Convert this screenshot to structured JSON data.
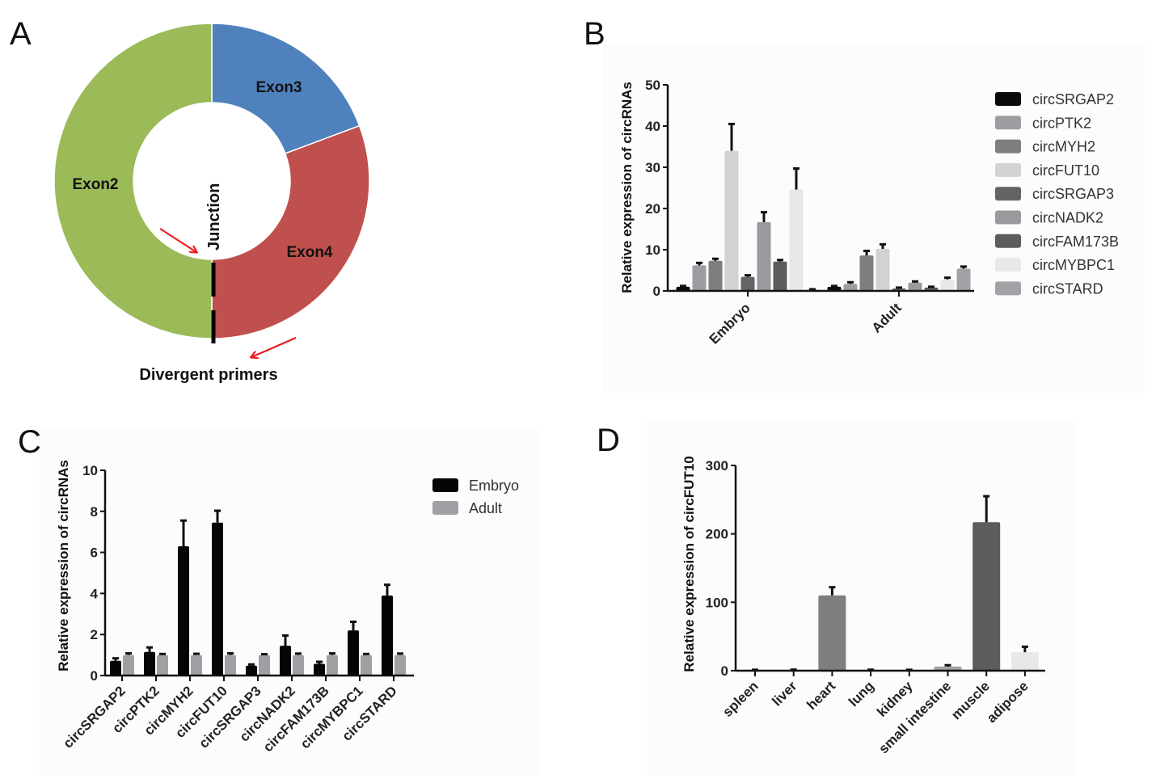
{
  "figure": {
    "panels": [
      "A",
      "B",
      "C",
      "D"
    ]
  },
  "chart_data": [
    {
      "id": "A",
      "type": "pie",
      "variant": "donut",
      "title": "",
      "slices": [
        {
          "label": "Exon3",
          "value": 19.3,
          "color": "#4f81bd"
        },
        {
          "label": "Exon4",
          "value": 30.7,
          "color": "#c0504d"
        },
        {
          "label": "Exon2",
          "value": 50.0,
          "color": "#9bbb59"
        }
      ],
      "annotations": {
        "junction": "Junction",
        "primers": "Divergent primers"
      }
    },
    {
      "id": "B",
      "type": "bar",
      "title": "",
      "xlabel": "",
      "ylabel": "Relative expression of circRNAs",
      "ylim": [
        0,
        50
      ],
      "yticks": [
        "0",
        "10",
        "20",
        "30",
        "40",
        "50"
      ],
      "categories": [
        "Embryo",
        "Adult"
      ],
      "legend_position": "right",
      "series": [
        {
          "name": "circSRGAP2",
          "color": "#0a0a0a",
          "values": [
            1.0,
            1.0
          ],
          "errors": [
            0.2,
            0.2
          ]
        },
        {
          "name": "circPTK2",
          "color": "#9d9da2",
          "values": [
            6.2,
            1.7
          ],
          "errors": [
            0.6,
            0.4
          ]
        },
        {
          "name": "circMYH2",
          "color": "#7e7e7e",
          "values": [
            7.3,
            8.6
          ],
          "errors": [
            0.5,
            1.1
          ]
        },
        {
          "name": "circFUT10",
          "color": "#d2d2d2",
          "values": [
            34.0,
            10.2
          ],
          "errors": [
            6.5,
            1.1
          ]
        },
        {
          "name": "circSRGAP3",
          "color": "#646464",
          "values": [
            3.4,
            0.6
          ],
          "errors": [
            0.4,
            0.2
          ]
        },
        {
          "name": "circNADK2",
          "color": "#9a9a9e",
          "values": [
            16.7,
            2.0
          ],
          "errors": [
            2.4,
            0.3
          ]
        },
        {
          "name": "circFAM173B",
          "color": "#5c5c5c",
          "values": [
            7.1,
            0.8
          ],
          "errors": [
            0.4,
            0.2
          ]
        },
        {
          "name": "circMYBPC1",
          "color": "#e8e8e8",
          "values": [
            24.6,
            2.8
          ],
          "errors": [
            5.1,
            0.4
          ]
        },
        {
          "name": "circSTARD",
          "color": "#a2a2a6",
          "values": [
            0.3,
            5.4
          ],
          "errors": [
            0.1,
            0.5
          ]
        }
      ]
    },
    {
      "id": "C",
      "type": "bar",
      "title": "",
      "xlabel": "",
      "ylabel": "Relative expression of circRNAs",
      "ylim": [
        0,
        10
      ],
      "yticks": [
        "0",
        "2",
        "4",
        "6",
        "8",
        "10"
      ],
      "categories": [
        "circSRGAP2",
        "circPTK2",
        "circMYH2",
        "circFUT10",
        "circSRGAP3",
        "circNADK2",
        "circFAM173B",
        "circMYBPC1",
        "circSTARD"
      ],
      "legend_position": "top-right",
      "series": [
        {
          "name": "Embryo",
          "color": "#050505",
          "values": [
            0.72,
            1.15,
            6.3,
            7.45,
            0.48,
            1.45,
            0.57,
            2.2,
            3.9
          ],
          "errors": [
            0.12,
            0.22,
            1.25,
            0.58,
            0.06,
            0.5,
            0.1,
            0.42,
            0.52
          ]
        },
        {
          "name": "Adult",
          "color": "#a0a0a4",
          "values": [
            1.0,
            1.0,
            1.0,
            1.0,
            1.0,
            1.0,
            1.0,
            1.0,
            1.0
          ],
          "errors": [
            0.08,
            0.05,
            0.06,
            0.08,
            0.04,
            0.07,
            0.08,
            0.05,
            0.07
          ]
        }
      ]
    },
    {
      "id": "D",
      "type": "bar",
      "title": "",
      "xlabel": "",
      "ylabel": "Relative expression of circFUT10",
      "ylim": [
        0,
        300
      ],
      "yticks": [
        "0",
        "100",
        "200",
        "300"
      ],
      "categories": [
        "spleen",
        "liver",
        "heart",
        "lung",
        "kidney",
        "small intestine",
        "muscle",
        "adipose"
      ],
      "colors": [
        "#0a0a0a",
        "#9d9da2",
        "#7e7e7e",
        "#d2d2d2",
        "#646464",
        "#a2a2a6",
        "#5c5c5c",
        "#e8e8e8"
      ],
      "values": [
        1.0,
        1.0,
        110,
        1.0,
        1.0,
        6.0,
        217,
        27
      ],
      "errors": [
        0.3,
        0.5,
        12,
        0.4,
        0.3,
        2.0,
        38,
        8
      ]
    }
  ]
}
